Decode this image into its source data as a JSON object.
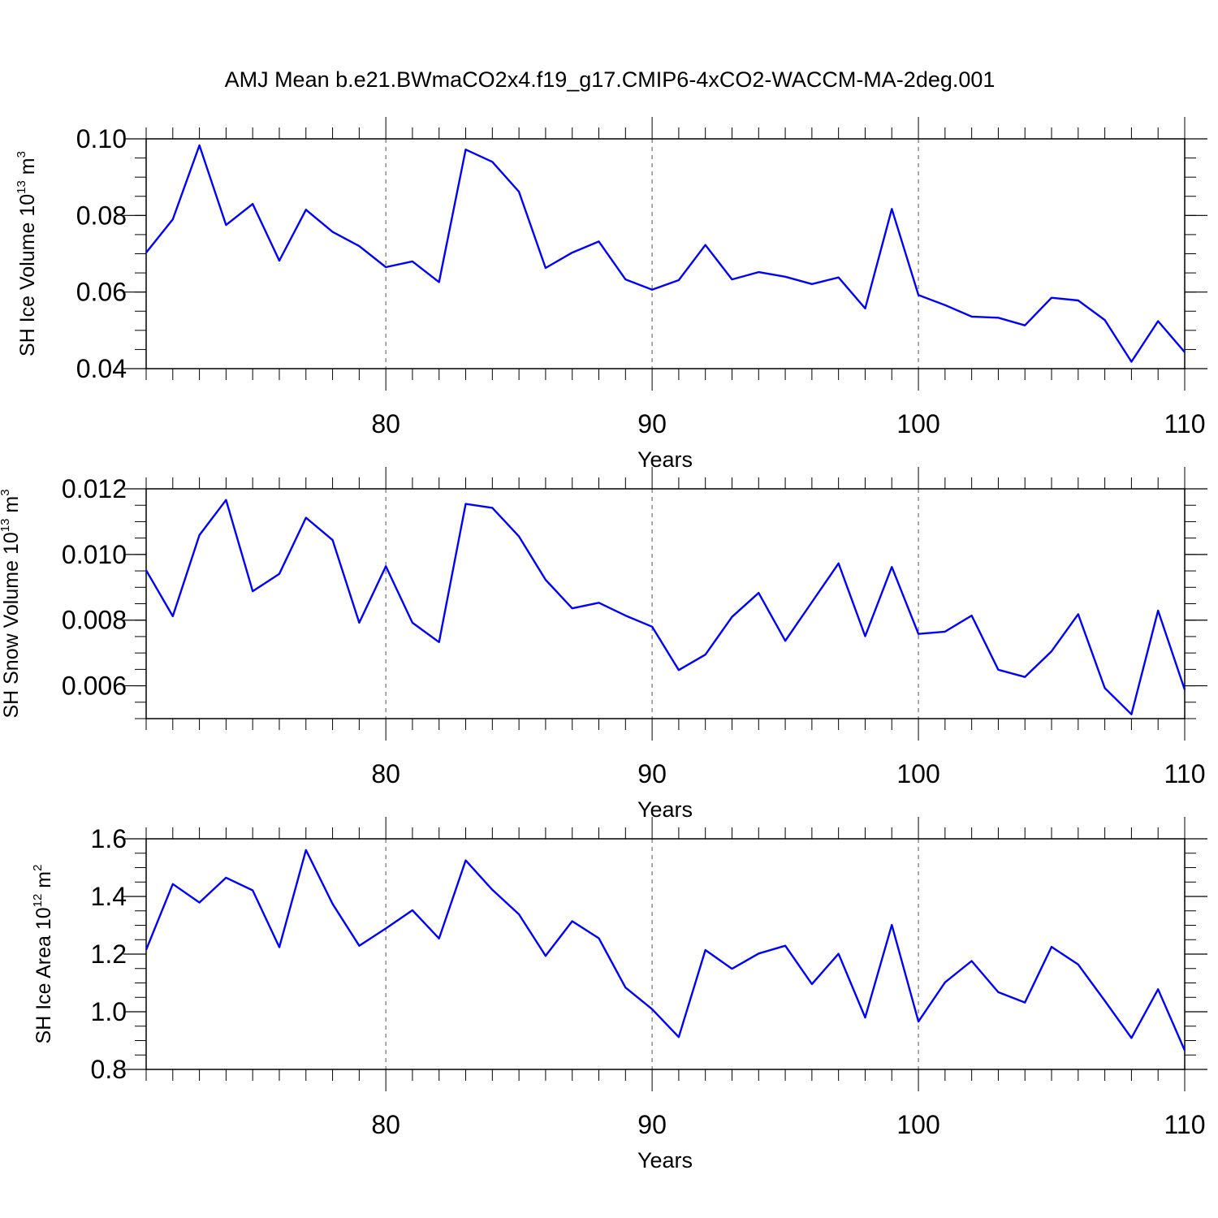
{
  "title": "AMJ Mean b.e21.BWmaCO2x4.f19_g17.CMIP6-4xCO2-WACCM-MA-2deg.001",
  "chart_data": [
    {
      "type": "line",
      "ylabel": {
        "text": "SH Ice Volume 10",
        "sup": "13",
        "unit": " m",
        "unit_sup": "3"
      },
      "xlabel": "Years",
      "xlim": [
        71,
        110
      ],
      "ylim": [
        0.04,
        0.1
      ],
      "yticks": [
        "0.04",
        "0.06",
        "0.08",
        "0.10"
      ],
      "xticks": [
        "80",
        "90",
        "100",
        "110"
      ],
      "line_color": "#0000ff",
      "grid": "dashed vertical at major x ticks",
      "x": [
        71,
        72,
        73,
        74,
        75,
        76,
        77,
        78,
        79,
        80,
        81,
        82,
        83,
        84,
        85,
        86,
        87,
        88,
        89,
        90,
        91,
        92,
        93,
        94,
        95,
        96,
        97,
        98,
        99,
        100,
        101,
        102,
        103,
        104,
        105,
        106,
        107,
        108,
        109,
        110
      ],
      "values": [
        0.0703,
        0.079,
        0.0983,
        0.0775,
        0.083,
        0.0682,
        0.0815,
        0.0757,
        0.072,
        0.0665,
        0.068,
        0.0626,
        0.0972,
        0.094,
        0.0862,
        0.0663,
        0.0703,
        0.0732,
        0.0633,
        0.0606,
        0.0631,
        0.0723,
        0.0633,
        0.0652,
        0.064,
        0.0621,
        0.0638,
        0.0557,
        0.0817,
        0.0592,
        0.0566,
        0.0536,
        0.0533,
        0.0513,
        0.0585,
        0.0578,
        0.0527,
        0.0418,
        0.0524,
        0.0443
      ]
    },
    {
      "type": "line",
      "ylabel": {
        "text": "SH Snow Volume 10",
        "sup": "13",
        "unit": " m",
        "unit_sup": "3"
      },
      "xlabel": "Years",
      "xlim": [
        71,
        110
      ],
      "ylim": [
        0.005,
        0.012
      ],
      "yticks": [
        "0.006",
        "0.008",
        "0.010",
        "0.012"
      ],
      "xticks": [
        "80",
        "90",
        "100",
        "110"
      ],
      "line_color": "#0000ff",
      "grid": "dashed vertical at major x ticks",
      "x": [
        71,
        72,
        73,
        74,
        75,
        76,
        77,
        78,
        79,
        80,
        81,
        82,
        83,
        84,
        85,
        86,
        87,
        88,
        89,
        90,
        91,
        92,
        93,
        94,
        95,
        96,
        97,
        98,
        99,
        100,
        101,
        102,
        103,
        104,
        105,
        106,
        107,
        108,
        109,
        110
      ],
      "values": [
        0.00952,
        0.00812,
        0.01059,
        0.01166,
        0.00888,
        0.00941,
        0.01112,
        0.01044,
        0.00792,
        0.00964,
        0.00792,
        0.00733,
        0.01154,
        0.01142,
        0.01055,
        0.00923,
        0.00836,
        0.00853,
        0.00814,
        0.0078,
        0.00648,
        0.00695,
        0.0081,
        0.00883,
        0.00737,
        0.00855,
        0.00973,
        0.00751,
        0.00962,
        0.00758,
        0.00765,
        0.00814,
        0.00649,
        0.00627,
        0.00705,
        0.00818,
        0.00593,
        0.00513,
        0.00829,
        0.00588
      ]
    },
    {
      "type": "line",
      "ylabel": {
        "text": "SH Ice Area 10",
        "sup": "12",
        "unit": " m",
        "unit_sup": "2"
      },
      "xlabel": "Years",
      "xlim": [
        71,
        110
      ],
      "ylim": [
        0.8,
        1.6
      ],
      "yticks": [
        "0.8",
        "1.0",
        "1.2",
        "1.4",
        "1.6"
      ],
      "xticks": [
        "80",
        "90",
        "100",
        "110"
      ],
      "line_color": "#0000ff",
      "grid": "dashed vertical at major x ticks",
      "x": [
        71,
        72,
        73,
        74,
        75,
        76,
        77,
        78,
        79,
        80,
        81,
        82,
        83,
        84,
        85,
        86,
        87,
        88,
        89,
        90,
        91,
        92,
        93,
        94,
        95,
        96,
        97,
        98,
        99,
        100,
        101,
        102,
        103,
        104,
        105,
        106,
        107,
        108,
        109,
        110
      ],
      "values": [
        1.215,
        1.443,
        1.379,
        1.465,
        1.421,
        1.224,
        1.561,
        1.374,
        1.229,
        1.289,
        1.352,
        1.254,
        1.525,
        1.423,
        1.338,
        1.194,
        1.314,
        1.255,
        1.084,
        1.009,
        0.912,
        1.214,
        1.149,
        1.202,
        1.229,
        1.096,
        1.201,
        0.98,
        1.301,
        0.966,
        1.102,
        1.176,
        1.068,
        1.032,
        1.225,
        1.164,
        1.038,
        0.909,
        1.078,
        0.866
      ]
    }
  ]
}
